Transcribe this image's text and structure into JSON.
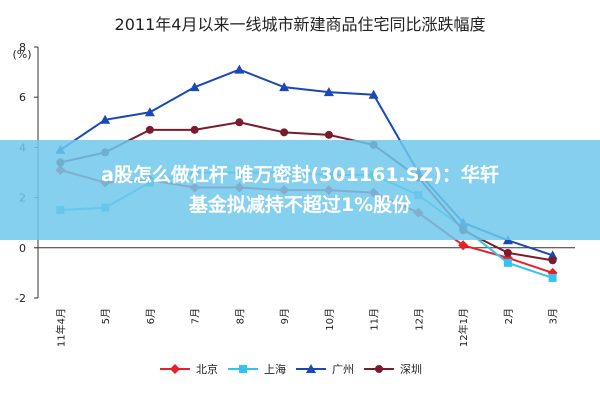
{
  "chart_data": {
    "type": "line",
    "title": "2011年4月以来一线城市新建商品住宅同比涨跌幅度",
    "y_label": "(%)",
    "categories": [
      "11年4月",
      "5月",
      "6月",
      "7月",
      "8月",
      "9月",
      "10月",
      "11月",
      "12月",
      "12年1月",
      "2月",
      "3月"
    ],
    "series": [
      {
        "name": "北京",
        "color": "#e8202a",
        "marker": "diamond",
        "values": [
          3.1,
          2.6,
          2.7,
          2.4,
          2.4,
          2.3,
          2.3,
          2.2,
          1.4,
          0.1,
          -0.4,
          -1.0
        ]
      },
      {
        "name": "上海",
        "color": "#33c3ee",
        "marker": "square",
        "values": [
          1.5,
          1.6,
          2.6,
          3.0,
          3.0,
          3.0,
          2.9,
          2.9,
          2.1,
          0.8,
          -0.6,
          -1.2
        ]
      },
      {
        "name": "广州",
        "color": "#1a48b8",
        "marker": "triangle",
        "values": [
          3.9,
          5.1,
          5.4,
          6.4,
          7.1,
          6.4,
          6.2,
          6.1,
          3.0,
          1.0,
          0.3,
          -0.3
        ]
      },
      {
        "name": "深圳",
        "color": "#7a1b2e",
        "marker": "circle",
        "values": [
          3.4,
          3.8,
          4.7,
          4.7,
          5.0,
          4.6,
          4.5,
          4.1,
          2.8,
          0.7,
          -0.2,
          -0.5
        ]
      }
    ],
    "ylim": [
      -2,
      8
    ],
    "yticks": [
      -2,
      0,
      2,
      4,
      6,
      8
    ],
    "legend": "bottom"
  },
  "overlay": {
    "lines": [
      "a股怎么做杠杆 唯万密封(301161.SZ)：华轩",
      "基金拟减持不超过1%股份"
    ]
  }
}
